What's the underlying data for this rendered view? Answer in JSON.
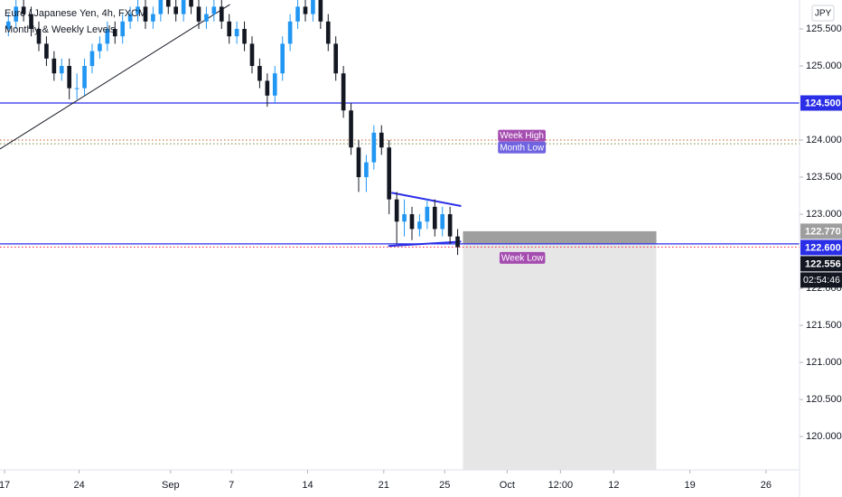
{
  "chart_data": {
    "type": "candlestick",
    "title": "Euro / Japanese Yen, 4h, FXCM",
    "subtitle": "Monthly & Weekly Levels",
    "currency": "JPY",
    "x": [
      0.25,
      0.75,
      1.25,
      1.75,
      2.25,
      2.75,
      3.25,
      3.75,
      4.25,
      4.75,
      5.25,
      5.75,
      6.25,
      6.75,
      7.25,
      7.75,
      8.25,
      8.75,
      9.25,
      9.75,
      10.25,
      10.75,
      11.25,
      11.75,
      12.25,
      12.75,
      13.25,
      13.75,
      14.25,
      14.75,
      15.25,
      15.75,
      16.25,
      16.75,
      17.25,
      17.75,
      18.25,
      18.75,
      19.25,
      19.75,
      20.25,
      20.75,
      21.25,
      21.75,
      22.25,
      22.75,
      23.25,
      23.75,
      24.25,
      24.75,
      25.25,
      25.75,
      26.25,
      26.75,
      27.25,
      27.75,
      28.25,
      28.75,
      29.25,
      29.75
    ],
    "open": [
      125.5,
      125.6,
      125.8,
      125.7,
      125.5,
      125.3,
      125.1,
      124.9,
      125.0,
      124.7,
      124.7,
      125.0,
      125.2,
      125.3,
      125.5,
      125.4,
      125.6,
      125.7,
      125.8,
      125.6,
      125.7,
      125.9,
      125.8,
      125.7,
      125.9,
      125.8,
      125.6,
      125.7,
      125.8,
      125.6,
      125.4,
      125.5,
      125.3,
      125.0,
      124.8,
      124.6,
      124.9,
      125.3,
      125.6,
      125.8,
      125.7,
      125.9,
      125.6,
      125.3,
      124.9,
      124.4,
      123.9,
      123.5,
      123.7,
      124.1,
      123.9,
      123.2,
      122.9,
      123.0,
      122.8,
      122.9,
      123.1,
      122.8,
      123.0,
      122.7
    ],
    "high": [
      125.7,
      125.9,
      125.9,
      125.8,
      125.6,
      125.4,
      125.2,
      125.1,
      125.1,
      124.9,
      125.1,
      125.3,
      125.4,
      125.6,
      125.6,
      125.7,
      125.8,
      125.9,
      125.9,
      125.8,
      126.0,
      126.0,
      125.9,
      126.0,
      126.0,
      125.9,
      125.8,
      125.9,
      125.9,
      125.7,
      125.6,
      125.6,
      125.4,
      125.1,
      124.9,
      125.0,
      125.4,
      125.7,
      125.9,
      125.9,
      126.0,
      126.0,
      125.7,
      125.4,
      125.0,
      124.5,
      124.0,
      123.8,
      124.2,
      124.2,
      124.0,
      123.3,
      123.2,
      123.1,
      123.0,
      123.2,
      123.2,
      123.1,
      123.1,
      122.8
    ],
    "low": [
      125.4,
      125.5,
      125.6,
      125.4,
      125.2,
      125.0,
      124.8,
      124.8,
      124.55,
      124.55,
      124.6,
      124.9,
      125.1,
      125.2,
      125.3,
      125.3,
      125.5,
      125.6,
      125.5,
      125.5,
      125.6,
      125.7,
      125.6,
      125.6,
      125.7,
      125.5,
      125.5,
      125.6,
      125.5,
      125.3,
      125.3,
      125.2,
      124.9,
      124.7,
      124.45,
      124.5,
      124.8,
      125.2,
      125.5,
      125.6,
      125.6,
      125.5,
      125.2,
      124.8,
      124.3,
      123.8,
      123.3,
      123.3,
      123.6,
      123.8,
      123.0,
      122.6,
      122.7,
      122.65,
      122.7,
      122.8,
      122.7,
      122.7,
      122.6,
      122.45
    ],
    "close": [
      125.6,
      125.8,
      125.7,
      125.5,
      125.3,
      125.1,
      124.9,
      125.0,
      124.7,
      124.7,
      125.0,
      125.2,
      125.3,
      125.5,
      125.4,
      125.6,
      125.7,
      125.8,
      125.6,
      125.7,
      125.9,
      125.8,
      125.7,
      125.9,
      125.8,
      125.6,
      125.7,
      125.8,
      125.6,
      125.4,
      125.5,
      125.3,
      125.0,
      124.8,
      124.6,
      124.9,
      125.3,
      125.6,
      125.8,
      125.7,
      125.9,
      125.6,
      125.3,
      124.9,
      124.4,
      123.9,
      123.5,
      123.7,
      124.1,
      123.9,
      123.2,
      122.9,
      123.0,
      122.8,
      122.9,
      123.1,
      122.8,
      123.0,
      122.7,
      122.556
    ],
    "up_color": "#2196f3",
    "down_color": "#131722",
    "xlim": [
      -0.3,
      52.2
    ],
    "xticks": [
      {
        "value": 0,
        "label": "17"
      },
      {
        "value": 4.9,
        "label": "24"
      },
      {
        "value": 10.9,
        "label": "Sep"
      },
      {
        "value": 14.9,
        "label": "7"
      },
      {
        "value": 19.9,
        "label": "14"
      },
      {
        "value": 24.9,
        "label": "21"
      },
      {
        "value": 28.9,
        "label": "25"
      },
      {
        "value": 33,
        "label": "Oct"
      },
      {
        "value": 36.5,
        "label": "12:00"
      },
      {
        "value": 40,
        "label": "12"
      },
      {
        "value": 45,
        "label": "19"
      },
      {
        "value": 50,
        "label": "26"
      }
    ],
    "ylim": [
      119.55,
      125.89
    ],
    "yticks": [
      {
        "value": 120,
        "label": "120.000"
      },
      {
        "value": 120.5,
        "label": "120.500"
      },
      {
        "value": 121,
        "label": "121.000"
      },
      {
        "value": 121.5,
        "label": "121.500"
      },
      {
        "value": 122,
        "label": "122.000"
      },
      {
        "value": 123,
        "label": "123.000"
      },
      {
        "value": 123.5,
        "label": "123.500"
      },
      {
        "value": 124,
        "label": "124.000"
      },
      {
        "value": 125,
        "label": "125.000"
      },
      {
        "value": 125.5,
        "label": "125.500"
      }
    ],
    "levels": [
      {
        "value": 124.5,
        "color": "#2a2ee6",
        "style": "solid"
      },
      {
        "value": 122.6,
        "color": "#2a2ee6",
        "style": "solid"
      },
      {
        "value": 124.0,
        "color": "#d07a50",
        "style": "dotted"
      },
      {
        "value": 123.95,
        "color": "#8fa060",
        "style": "dotted"
      },
      {
        "value": 122.556,
        "color": "#f23645",
        "style": "dotted"
      }
    ],
    "annotations": [
      {
        "text": "Week High",
        "value": 124.06,
        "x": 32.4,
        "color": "#a54cb0"
      },
      {
        "text": "Month Low",
        "value": 123.9,
        "x": 32.4,
        "color": "#6f63e0"
      },
      {
        "text": "Week Low",
        "value": 122.41,
        "x": 32.5,
        "color": "#a54cb0"
      }
    ],
    "trendlines": [
      {
        "x": [
          -0.3,
          14.8
        ],
        "y": [
          123.88,
          125.83
        ],
        "color": "#131722"
      },
      {
        "x": [
          25.4,
          29.98
        ],
        "y": [
          123.29,
          123.11
        ],
        "color": "#2a2ee6"
      },
      {
        "x": [
          25.2,
          29.98
        ],
        "y": [
          122.57,
          122.63
        ],
        "color": "#2a2ee6"
      }
    ],
    "position": {
      "x": [
        30.1,
        42.8
      ],
      "entry": 122.6,
      "stop": 122.77,
      "target": 119.3
    },
    "price_labels": [
      {
        "value": 124.5,
        "label": "124.500",
        "color": "#2a2ee6"
      },
      {
        "value": 122.77,
        "label": "122.770",
        "color": "#9e9e9e"
      },
      {
        "value": 122.6,
        "label": "122.600",
        "color": "#2a2ee6"
      },
      {
        "value": 122.556,
        "label": "122.556",
        "color": "#131722",
        "countdown": "02:54:46"
      }
    ]
  }
}
